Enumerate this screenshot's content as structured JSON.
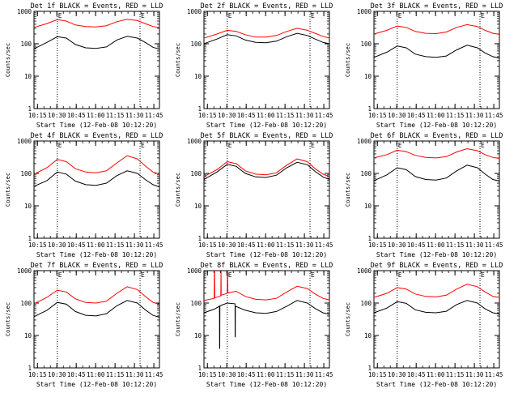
{
  "window": {
    "background": "#ffffff",
    "axis_color": "#000000"
  },
  "shared": {
    "ylabel": "Counts/sec",
    "xlabel": "Start Time (12-Feb-08 10:12:20)",
    "x_tick_labels": [
      "10:15",
      "10:30",
      "10:45",
      "11:00",
      "11:15",
      "11:30",
      "11:45"
    ],
    "y_tick_labels": [
      "1",
      "10",
      "100",
      "1000"
    ],
    "flag_labels": [
      "E",
      "E"
    ]
  },
  "chart_data": [
    {
      "type": "line",
      "title": "Det 1f BLACK = Events, RED = LLD",
      "x_unit": "minutes after 10:12:20",
      "xlim": [
        0,
        97
      ],
      "ylim": [
        1,
        1000
      ],
      "y_scale": "log",
      "grid": false,
      "markers": [
        {
          "x": 18,
          "label": "E"
        },
        {
          "x": 82,
          "label": "E"
        }
      ],
      "series": [
        {
          "color": "#ff0000",
          "x": [
            0,
            10,
            18,
            25,
            32,
            40,
            48,
            56,
            64,
            72,
            80,
            86,
            92,
            97
          ],
          "y": [
            320,
            420,
            560,
            500,
            380,
            340,
            330,
            360,
            480,
            570,
            520,
            420,
            340,
            310
          ]
        },
        {
          "color": "#000000",
          "x": [
            0,
            10,
            18,
            25,
            32,
            40,
            48,
            56,
            64,
            72,
            80,
            86,
            92,
            97
          ],
          "y": [
            70,
            110,
            165,
            150,
            95,
            75,
            72,
            80,
            130,
            170,
            150,
            110,
            78,
            68
          ]
        }
      ]
    },
    {
      "type": "line",
      "title": "Det 2f BLACK = Events, RED = LLD",
      "x_unit": "minutes after 10:12:20",
      "xlim": [
        0,
        97
      ],
      "ylim": [
        1,
        1000
      ],
      "y_scale": "log",
      "grid": false,
      "markers": [
        {
          "x": 18,
          "label": "E"
        },
        {
          "x": 82,
          "label": "E"
        }
      ],
      "series": [
        {
          "color": "#ff0000",
          "x": [
            0,
            10,
            18,
            25,
            32,
            40,
            48,
            56,
            64,
            72,
            80,
            86,
            92,
            97
          ],
          "y": [
            150,
            200,
            260,
            240,
            190,
            160,
            160,
            180,
            240,
            300,
            260,
            210,
            170,
            150
          ]
        },
        {
          "color": "#000000",
          "x": [
            0,
            10,
            18,
            25,
            32,
            40,
            48,
            56,
            64,
            72,
            80,
            86,
            92,
            97
          ],
          "y": [
            100,
            140,
            190,
            175,
            130,
            110,
            108,
            120,
            165,
            210,
            180,
            140,
            110,
            100
          ]
        }
      ]
    },
    {
      "type": "line",
      "title": "Det 3f BLACK = Events, RED = LLD",
      "x_unit": "minutes after 10:12:20",
      "xlim": [
        0,
        97
      ],
      "ylim": [
        1,
        1000
      ],
      "y_scale": "log",
      "grid": false,
      "markers": [
        {
          "x": 18,
          "label": "E"
        },
        {
          "x": 82,
          "label": "E"
        }
      ],
      "series": [
        {
          "color": "#ff0000",
          "x": [
            0,
            10,
            18,
            25,
            32,
            40,
            48,
            56,
            64,
            72,
            80,
            86,
            92,
            97
          ],
          "y": [
            200,
            260,
            350,
            320,
            240,
            210,
            205,
            230,
            320,
            390,
            340,
            260,
            210,
            195
          ]
        },
        {
          "color": "#000000",
          "x": [
            0,
            10,
            18,
            25,
            32,
            40,
            48,
            56,
            64,
            72,
            80,
            86,
            92,
            97
          ],
          "y": [
            38,
            55,
            85,
            75,
            48,
            40,
            38,
            42,
            65,
            90,
            75,
            52,
            40,
            36
          ]
        }
      ]
    },
    {
      "type": "line",
      "title": "Det 4f BLACK = Events, RED = LLD",
      "x_unit": "minutes after 10:12:20",
      "xlim": [
        0,
        97
      ],
      "ylim": [
        1,
        1000
      ],
      "y_scale": "log",
      "grid": false,
      "markers": [
        {
          "x": 18,
          "label": "E"
        },
        {
          "x": 82,
          "label": "E"
        }
      ],
      "series": [
        {
          "color": "#ff0000",
          "x": [
            0,
            10,
            18,
            25,
            32,
            40,
            48,
            56,
            64,
            72,
            80,
            86,
            92,
            97
          ],
          "y": [
            95,
            150,
            270,
            230,
            140,
            110,
            105,
            120,
            210,
            350,
            280,
            170,
            110,
            95
          ]
        },
        {
          "color": "#000000",
          "x": [
            0,
            10,
            18,
            25,
            32,
            40,
            48,
            56,
            64,
            72,
            80,
            86,
            92,
            97
          ],
          "y": [
            40,
            60,
            110,
            95,
            58,
            45,
            43,
            50,
            85,
            120,
            100,
            65,
            45,
            38
          ]
        }
      ]
    },
    {
      "type": "line",
      "title": "Det 5f BLACK = Events, RED = LLD",
      "x_unit": "minutes after 10:12:20",
      "xlim": [
        0,
        97
      ],
      "ylim": [
        1,
        1000
      ],
      "y_scale": "log",
      "grid": false,
      "markers": [
        {
          "x": 18,
          "label": "E"
        },
        {
          "x": 82,
          "label": "E"
        }
      ],
      "series": [
        {
          "color": "#ff0000",
          "x": [
            0,
            10,
            18,
            25,
            32,
            40,
            48,
            56,
            64,
            72,
            80,
            86,
            92,
            97
          ],
          "y": [
            80,
            130,
            230,
            200,
            120,
            95,
            90,
            105,
            180,
            280,
            230,
            140,
            95,
            80
          ]
        },
        {
          "color": "#000000",
          "x": [
            0,
            10,
            18,
            25,
            32,
            40,
            48,
            56,
            64,
            72,
            80,
            86,
            92,
            97
          ],
          "y": [
            65,
            110,
            190,
            165,
            100,
            78,
            75,
            88,
            150,
            220,
            185,
            115,
            78,
            65
          ]
        }
      ]
    },
    {
      "type": "line",
      "title": "Det 6f BLACK = Events, RED = LLD",
      "x_unit": "minutes after 10:12:20",
      "xlim": [
        0,
        97
      ],
      "ylim": [
        1,
        1000
      ],
      "y_scale": "log",
      "grid": false,
      "markers": [
        {
          "x": 18,
          "label": "E"
        },
        {
          "x": 82,
          "label": "E"
        }
      ],
      "series": [
        {
          "color": "#ff0000",
          "x": [
            0,
            10,
            18,
            25,
            32,
            40,
            48,
            56,
            64,
            72,
            80,
            86,
            92,
            97
          ],
          "y": [
            300,
            380,
            520,
            470,
            360,
            310,
            300,
            330,
            460,
            580,
            500,
            380,
            310,
            290
          ]
        },
        {
          "color": "#000000",
          "x": [
            0,
            10,
            18,
            25,
            32,
            40,
            48,
            56,
            64,
            72,
            80,
            86,
            92,
            97
          ],
          "y": [
            60,
            90,
            150,
            130,
            80,
            65,
            62,
            72,
            120,
            180,
            150,
            95,
            65,
            58
          ]
        }
      ]
    },
    {
      "type": "line",
      "title": "Det 7f BLACK = Events, RED = LLD",
      "x_unit": "minutes after 10:12:20",
      "xlim": [
        0,
        97
      ],
      "ylim": [
        1,
        1000
      ],
      "y_scale": "log",
      "grid": false,
      "markers": [
        {
          "x": 18,
          "label": "E"
        },
        {
          "x": 82,
          "label": "E"
        }
      ],
      "series": [
        {
          "color": "#ff0000",
          "x": [
            0,
            10,
            18,
            25,
            32,
            40,
            48,
            56,
            64,
            72,
            80,
            86,
            92,
            97
          ],
          "y": [
            95,
            150,
            250,
            220,
            135,
            105,
            100,
            115,
            200,
            320,
            260,
            160,
            105,
            92
          ]
        },
        {
          "color": "#000000",
          "x": [
            0,
            10,
            18,
            25,
            32,
            40,
            48,
            56,
            64,
            72,
            80,
            86,
            92,
            97
          ],
          "y": [
            38,
            60,
            105,
            92,
            55,
            42,
            40,
            47,
            82,
            120,
            100,
            62,
            42,
            36
          ]
        }
      ]
    },
    {
      "type": "line",
      "title": "Det 8f BLACK = Events, RED = LLD",
      "x_unit": "minutes after 10:12:20",
      "xlim": [
        0,
        97
      ],
      "ylim": [
        1,
        1000
      ],
      "y_scale": "log",
      "grid": false,
      "markers": [
        {
          "x": 18,
          "label": "E"
        },
        {
          "x": 82,
          "label": "E"
        }
      ],
      "series": [
        {
          "color": "#ff0000",
          "x": [
            0,
            7.9,
            8,
            8.2,
            8.3,
            12,
            13,
            13.2,
            13.3,
            18,
            18.2,
            18.3,
            18.5,
            25,
            32,
            40,
            48,
            56,
            64,
            72,
            80,
            86,
            92,
            97
          ],
          "y": [
            120,
            140,
            1000,
            1000,
            145,
            160,
            170,
            1000,
            175,
            200,
            1000,
            1000,
            205,
            230,
            160,
            130,
            125,
            140,
            220,
            330,
            280,
            190,
            140,
            125
          ]
        },
        {
          "color": "#000000",
          "x": [
            0,
            8,
            12,
            12.1,
            12.2,
            12.3,
            18,
            24,
            24.1,
            24.2,
            24.3,
            32,
            40,
            48,
            56,
            64,
            72,
            80,
            86,
            92,
            97
          ],
          "y": [
            50,
            65,
            80,
            4,
            4,
            82,
            100,
            95,
            9,
            9,
            80,
            60,
            50,
            48,
            55,
            80,
            120,
            100,
            68,
            50,
            45
          ]
        }
      ]
    },
    {
      "type": "line",
      "title": "Det 9f BLACK = Events, RED = LLD",
      "x_unit": "minutes after 10:12:20",
      "xlim": [
        0,
        97
      ],
      "ylim": [
        1,
        1000
      ],
      "y_scale": "log",
      "grid": false,
      "markers": [
        {
          "x": 18,
          "label": "E"
        },
        {
          "x": 82,
          "label": "E"
        }
      ],
      "series": [
        {
          "color": "#ff0000",
          "x": [
            0,
            10,
            18,
            25,
            32,
            40,
            48,
            56,
            64,
            72,
            80,
            86,
            92,
            97
          ],
          "y": [
            150,
            200,
            300,
            270,
            190,
            160,
            155,
            175,
            270,
            380,
            320,
            220,
            160,
            150
          ]
        },
        {
          "color": "#000000",
          "x": [
            0,
            10,
            18,
            25,
            32,
            40,
            48,
            56,
            64,
            72,
            80,
            86,
            92,
            97
          ],
          "y": [
            50,
            70,
            110,
            98,
            62,
            52,
            50,
            56,
            90,
            120,
            100,
            66,
            50,
            46
          ]
        }
      ]
    }
  ]
}
